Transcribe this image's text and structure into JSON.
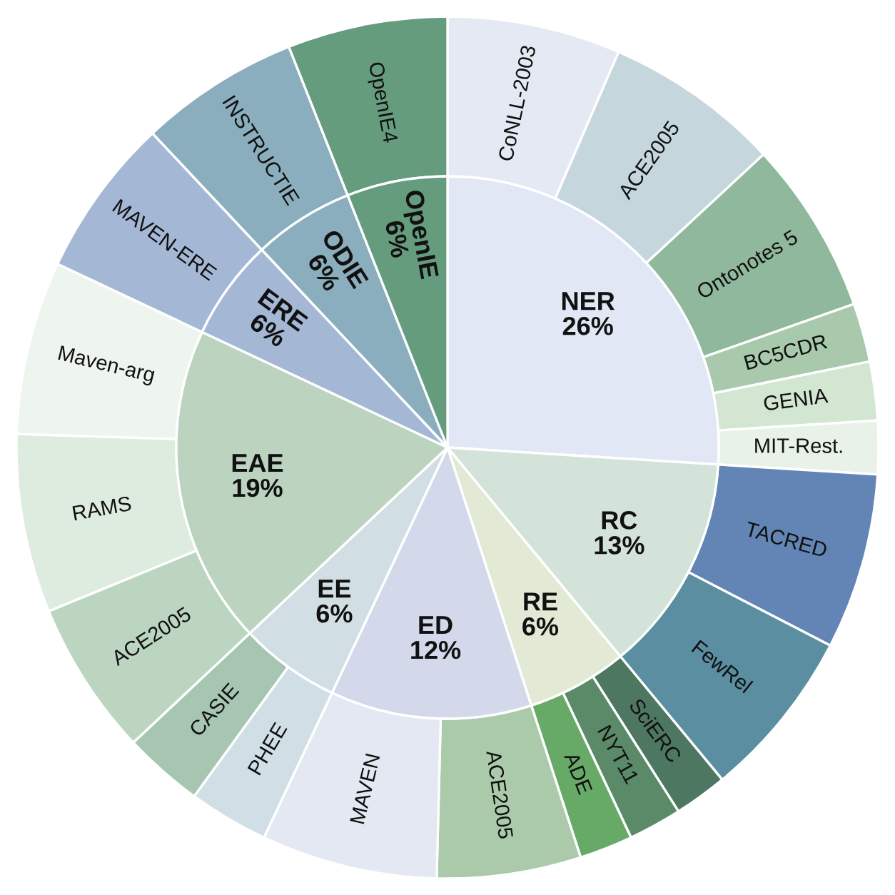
{
  "chart_data": {
    "type": "donut",
    "categories": [
      "CoNLL-2003",
      "ACE2005",
      "Ontonotes 5",
      "BC5CDR",
      "GENIA",
      "MIT-Rest.",
      "TACRED",
      "FewRel",
      "SciERC",
      "NYT11",
      "ADE",
      "ACE2005",
      "MAVEN",
      "PHEE",
      "CASIE",
      "ACE2005",
      "RAMS",
      "Maven-arg",
      "MAVEN-ERE",
      "INSTRUCTIE",
      "OpenIE4"
    ],
    "series": [
      {
        "values": [
          6.5,
          6.6,
          6.5,
          2.2,
          2.2,
          2.0,
          6.6,
          6.4,
          2,
          2,
          2,
          5.4,
          6.6,
          3,
          3,
          5.8,
          6.7,
          6.5,
          6,
          6,
          6
        ],
        "colors": [
          "#e4e9f3",
          "#c5d6dd",
          "#8fb89c",
          "#a9c9ad",
          "#d2e6d2",
          "#e8f2e8",
          "#6385b5",
          "#5a8ea0",
          "#4d7760",
          "#5a8a68",
          "#67aa68",
          "#aacaa9",
          "#e3e8f3",
          "#d0dfe5",
          "#a6c6b2",
          "#bcd5c0",
          "#deebdf",
          "#eef5ee",
          "#a4b8d6",
          "#8aaebd",
          "#669c7e"
        ]
      },
      {
        "type": "pie",
        "values": [
          26,
          13,
          6,
          12,
          6,
          19,
          6,
          6,
          6,
          null,
          null,
          null,
          null,
          null,
          null,
          null,
          null,
          null,
          null,
          null,
          null
        ],
        "value_labels": [
          "NER\n26%",
          "RC\n13%",
          "RE\n6%",
          "ED\n12%",
          "EE\n6%",
          "EAE\n19%",
          "ERE\n6%",
          "ODIE\n6%",
          "OpenIE\n6%",
          null,
          null,
          null,
          null,
          null,
          null,
          null,
          null,
          null,
          null,
          null,
          null
        ],
        "colors": [
          "#e1e7f4",
          "#d4e3da",
          "#e2ead6",
          "#d3d9ea",
          "#d1dfe5",
          "#bbd3bf",
          "#a4b8d6",
          "#8aaebd",
          "#669c7e",
          null,
          null,
          null,
          null,
          null,
          null,
          null,
          null,
          null,
          null,
          null,
          null
        ]
      }
    ]
  }
}
